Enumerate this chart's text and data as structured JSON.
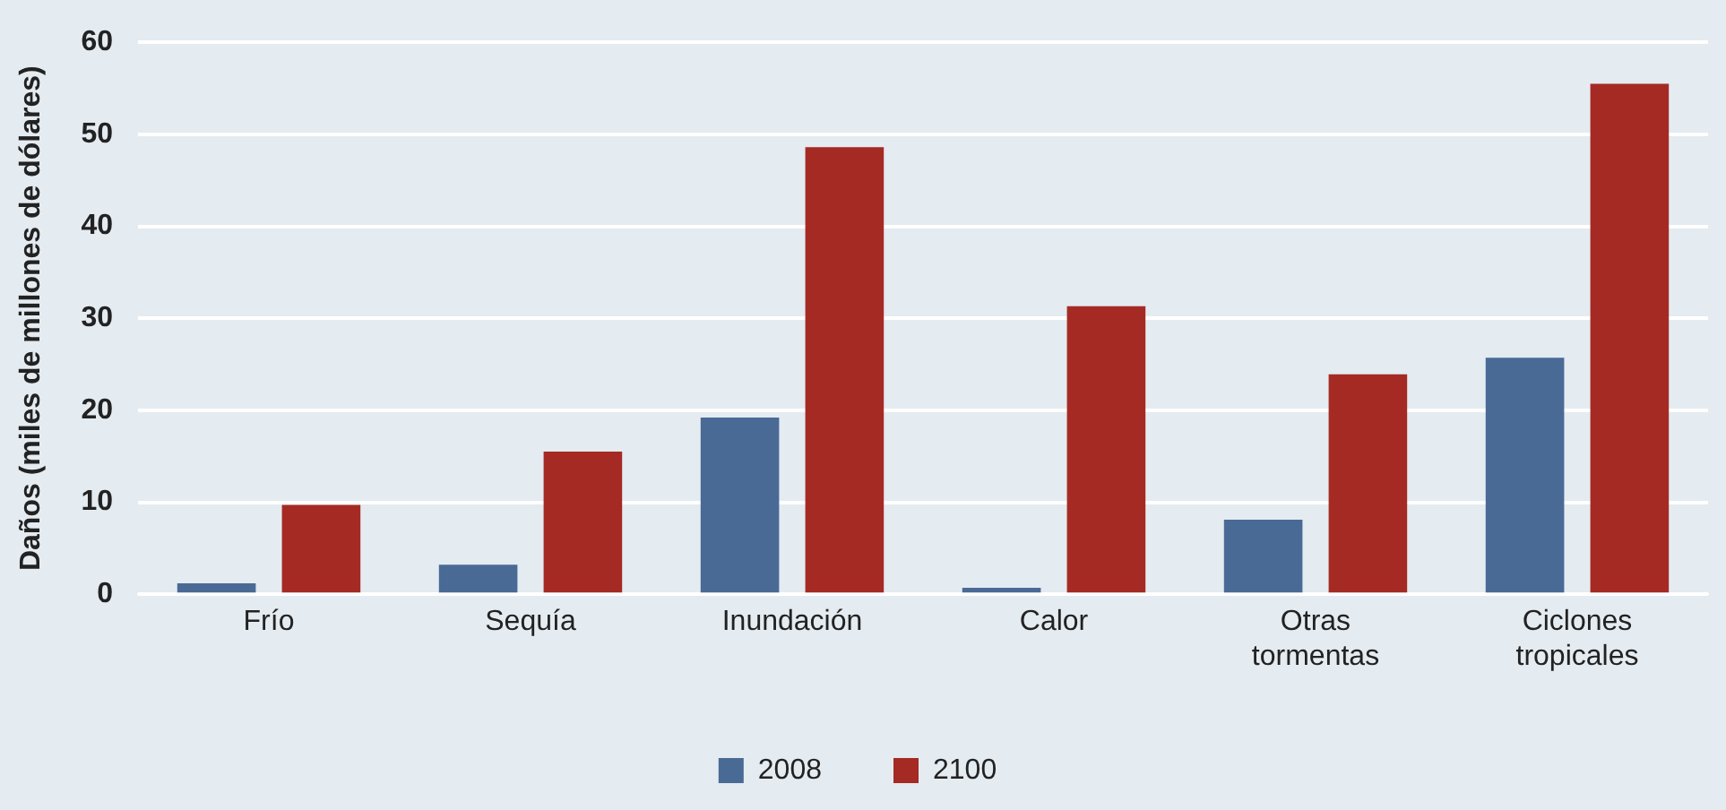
{
  "chart_data": {
    "type": "bar",
    "ylabel": "Daños (miles de millones de dólares)",
    "categories": [
      "Frío",
      "Sequía",
      "Inundación",
      "Calor",
      "Otras tormentas",
      "Ciclones tropicales"
    ],
    "series": [
      {
        "name": "2008",
        "color": "#4a6a96",
        "values": [
          1.2,
          3.2,
          19.2,
          0.7,
          8.1,
          25.7
        ]
      },
      {
        "name": "2100",
        "color": "#a52a24",
        "values": [
          9.7,
          15.5,
          48.6,
          31.3,
          23.9,
          55.5
        ]
      }
    ],
    "ylim": [
      0,
      60
    ],
    "yticks": [
      0,
      10,
      20,
      30,
      40,
      50,
      60
    ],
    "grid": "y",
    "legend": "bottom"
  }
}
